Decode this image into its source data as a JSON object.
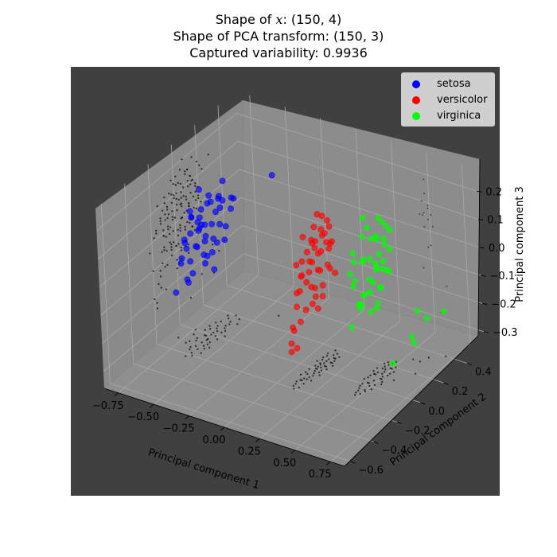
{
  "title": {
    "line1_prefix": "Shape of ",
    "line1_var": "x",
    "line1_suffix": ": (150, 4)",
    "line2": "Shape of PCA transform: (150, 3)",
    "line3": "Captured variability: 0.9936"
  },
  "chart_data": {
    "type": "scatter",
    "projection": "3d",
    "xlabel": "Principal component 1",
    "ylabel": "Principal component 2",
    "zlabel": "Principal component 3",
    "x_ticks": [
      "−0.75",
      "−0.50",
      "−0.25",
      "0.00",
      "0.25",
      "0.50",
      "0.75"
    ],
    "y_ticks": [
      "−0.6",
      "−0.4",
      "−0.2",
      "0.0",
      "0.2",
      "0.4"
    ],
    "z_ticks": [
      "−0.3",
      "−0.2",
      "−0.1",
      "0.0",
      "0.1",
      "0.2"
    ],
    "xlim": [
      -0.85,
      0.85
    ],
    "ylim": [
      -0.65,
      0.55
    ],
    "zlim": [
      -0.36,
      0.28
    ],
    "legend_position": "upper right",
    "background_color": "#404040",
    "pane_color": "#8c8c8c",
    "projection_shadow_color": "#000000",
    "series": [
      {
        "name": "setosa",
        "color": "#0000ff",
        "points": [
          [
            -0.62,
            -0.05,
            0.05
          ],
          [
            -0.6,
            -0.1,
            0.08
          ],
          [
            -0.64,
            -0.12,
            0.04
          ],
          [
            -0.63,
            0.02,
            0.1
          ],
          [
            -0.58,
            0.06,
            0.12
          ],
          [
            -0.66,
            -0.02,
            0.02
          ],
          [
            -0.61,
            0.1,
            0.06
          ],
          [
            -0.59,
            -0.06,
            0.0
          ],
          [
            -0.67,
            0.04,
            -0.03
          ],
          [
            -0.62,
            -0.18,
            0.01
          ],
          [
            -0.56,
            0.14,
            0.09
          ],
          [
            -0.65,
            0.08,
            -0.05
          ],
          [
            -0.63,
            -0.08,
            -0.02
          ],
          [
            -0.6,
            0.0,
            0.14
          ],
          [
            -0.57,
            -0.02,
            0.05
          ],
          [
            -0.68,
            -0.06,
            0.07
          ],
          [
            -0.66,
            0.12,
            0.03
          ],
          [
            -0.7,
            -0.1,
            -0.01
          ],
          [
            -0.61,
            -0.14,
            0.11
          ],
          [
            -0.64,
            0.06,
            0.09
          ],
          [
            -0.59,
            0.04,
            -0.04
          ],
          [
            -0.69,
            0.02,
            0.04
          ],
          [
            -0.62,
            -0.04,
            -0.06
          ],
          [
            -0.58,
            -0.12,
            0.06
          ],
          [
            -0.65,
            -0.16,
            0.03
          ],
          [
            -0.6,
            0.08,
            0.01
          ],
          [
            -0.63,
            0.0,
            -0.08
          ],
          [
            -0.55,
            0.02,
            0.13
          ],
          [
            -0.67,
            -0.08,
            0.1
          ],
          [
            -0.61,
            0.14,
            -0.02
          ],
          [
            -0.72,
            -0.04,
            -0.1
          ],
          [
            -0.74,
            0.0,
            -0.16
          ],
          [
            -0.6,
            -0.2,
            -0.1
          ],
          [
            -0.56,
            -0.1,
            -0.06
          ],
          [
            -0.64,
            0.16,
            -0.08
          ],
          [
            -0.66,
            -0.14,
            -0.12
          ],
          [
            -0.62,
            0.2,
            0.02
          ],
          [
            -0.68,
            0.1,
            -0.11
          ],
          [
            -0.58,
            0.18,
            0.07
          ],
          [
            -0.63,
            -0.22,
            -0.03
          ],
          [
            -0.6,
            0.12,
            0.15
          ],
          [
            -0.65,
            -0.02,
            0.16
          ],
          [
            -0.57,
            -0.16,
            0.02
          ],
          [
            -0.69,
            0.06,
            0.0
          ],
          [
            -0.71,
            -0.12,
            -0.06
          ],
          [
            -0.4,
            0.3,
            0.14
          ],
          [
            -0.78,
            -0.1,
            -0.2
          ],
          [
            -0.62,
            0.04,
            -0.14
          ],
          [
            -0.59,
            -0.08,
            0.12
          ],
          [
            -0.66,
            0.18,
            0.05
          ]
        ]
      },
      {
        "name": "versicolor",
        "color": "#ff0000",
        "points": [
          [
            0.1,
            0.05,
            0.05
          ],
          [
            0.12,
            0.0,
            0.02
          ],
          [
            0.08,
            -0.05,
            -0.02
          ],
          [
            0.15,
            0.08,
            0.1
          ],
          [
            0.11,
            -0.1,
            -0.05
          ],
          [
            0.14,
            0.12,
            0.03
          ],
          [
            0.09,
            0.02,
            -0.08
          ],
          [
            0.13,
            -0.04,
            0.0
          ],
          [
            0.16,
            0.1,
            -0.03
          ],
          [
            0.1,
            -0.12,
            -0.1
          ],
          [
            0.07,
            0.06,
            0.07
          ],
          [
            0.12,
            0.14,
            0.12
          ],
          [
            0.15,
            -0.02,
            -0.06
          ],
          [
            0.11,
            0.04,
            0.13
          ],
          [
            0.13,
            -0.08,
            -0.12
          ],
          [
            0.08,
            0.1,
            0.01
          ],
          [
            0.17,
            0.02,
            0.06
          ],
          [
            0.1,
            -0.06,
            0.04
          ],
          [
            0.14,
            -0.14,
            -0.14
          ],
          [
            0.12,
            0.08,
            -0.09
          ],
          [
            0.09,
            0.12,
            0.09
          ],
          [
            0.16,
            -0.1,
            -0.01
          ],
          [
            0.11,
            0.0,
            -0.13
          ],
          [
            0.13,
            0.16,
            0.04
          ],
          [
            0.08,
            -0.02,
            0.11
          ],
          [
            0.15,
            0.04,
            -0.11
          ],
          [
            0.1,
            -0.16,
            -0.16
          ],
          [
            0.12,
            0.1,
            0.15
          ],
          [
            0.14,
            -0.06,
            0.08
          ],
          [
            0.09,
            0.08,
            -0.04
          ],
          [
            0.18,
            0.06,
            0.0
          ],
          [
            0.07,
            -0.08,
            -0.07
          ],
          [
            0.13,
            0.02,
            -0.15
          ],
          [
            0.11,
            -0.12,
            0.05
          ],
          [
            0.16,
            0.14,
            -0.06
          ],
          [
            0.12,
            -0.2,
            -0.2
          ],
          [
            0.1,
            0.18,
            0.02
          ],
          [
            0.14,
            -0.18,
            -0.22
          ],
          [
            0.15,
            0.0,
            0.1
          ],
          [
            0.09,
            -0.14,
            -0.18
          ],
          [
            0.12,
            0.06,
            0.17
          ],
          [
            0.17,
            -0.04,
            -0.08
          ],
          [
            0.08,
            0.14,
            0.06
          ],
          [
            0.13,
            -0.1,
            0.01
          ],
          [
            0.11,
            0.02,
            0.08
          ],
          [
            0.15,
            0.12,
            0.11
          ],
          [
            0.1,
            -0.18,
            -0.24
          ],
          [
            0.14,
            0.04,
            -0.02
          ],
          [
            0.12,
            -0.02,
            0.03
          ],
          [
            0.16,
            0.08,
            0.07
          ]
        ]
      },
      {
        "name": "virginica",
        "color": "#00ff00",
        "points": [
          [
            0.45,
            0.1,
            0.05
          ],
          [
            0.48,
            0.05,
            0.0
          ],
          [
            0.42,
            0.15,
            0.1
          ],
          [
            0.5,
            -0.05,
            -0.05
          ],
          [
            0.46,
            0.2,
            0.15
          ],
          [
            0.44,
            0.0,
            -0.08
          ],
          [
            0.52,
            0.12,
            0.02
          ],
          [
            0.47,
            -0.1,
            -0.12
          ],
          [
            0.43,
            0.08,
            0.2
          ],
          [
            0.49,
            0.18,
            0.08
          ],
          [
            0.51,
            0.02,
            -0.03
          ],
          [
            0.45,
            -0.04,
            0.12
          ],
          [
            0.48,
            0.14,
            -0.06
          ],
          [
            0.53,
            0.06,
            0.04
          ],
          [
            0.44,
            0.22,
            0.0
          ],
          [
            0.46,
            -0.08,
            0.06
          ],
          [
            0.5,
            0.1,
            0.14
          ],
          [
            0.42,
            0.04,
            -0.1
          ],
          [
            0.47,
            0.16,
            0.18
          ],
          [
            0.52,
            -0.02,
            -0.02
          ],
          [
            0.45,
            0.12,
            -0.04
          ],
          [
            0.49,
            0.0,
            0.09
          ],
          [
            0.43,
            0.2,
            0.03
          ],
          [
            0.51,
            0.08,
            -0.09
          ],
          [
            0.46,
            -0.06,
            0.01
          ],
          [
            0.48,
            0.24,
            0.11
          ],
          [
            0.54,
            0.04,
            0.07
          ],
          [
            0.44,
            0.1,
            -0.14
          ],
          [
            0.5,
            0.18,
            -0.01
          ],
          [
            0.47,
            0.02,
            0.16
          ],
          [
            0.6,
            0.3,
            -0.18
          ],
          [
            0.7,
            0.4,
            -0.2
          ],
          [
            0.65,
            0.2,
            -0.25
          ],
          [
            0.55,
            0.3,
            -0.28
          ],
          [
            0.62,
            0.35,
            -0.22
          ],
          [
            0.58,
            0.1,
            -0.3
          ],
          [
            0.45,
            0.16,
            0.1
          ],
          [
            0.49,
            -0.04,
            -0.07
          ],
          [
            0.52,
            0.14,
            0.12
          ],
          [
            0.43,
            0.06,
            0.05
          ],
          [
            0.48,
            0.12,
            0.02
          ],
          [
            0.46,
            0.02,
            -0.05
          ],
          [
            0.51,
            0.2,
            0.06
          ],
          [
            0.44,
            -0.02,
            0.08
          ],
          [
            0.5,
            0.08,
            -0.11
          ],
          [
            0.47,
            0.22,
            0.13
          ],
          [
            0.53,
            0.16,
            0.0
          ],
          [
            0.42,
            0.12,
            0.15
          ],
          [
            0.49,
            -0.08,
            0.04
          ],
          [
            0.45,
            0.18,
            -0.08
          ]
        ]
      }
    ]
  }
}
